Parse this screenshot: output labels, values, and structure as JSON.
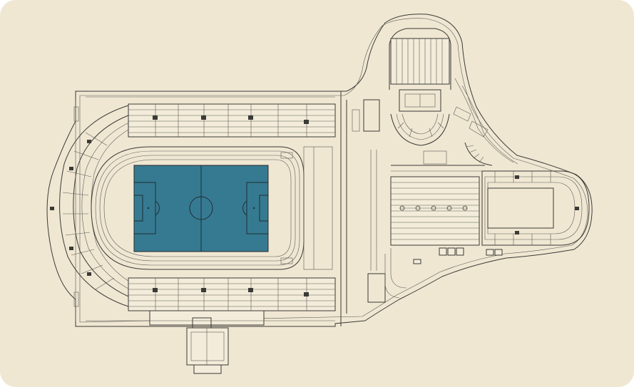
{
  "plan": {
    "background_color": "#f0e7d3",
    "line_color": "#3a3a36",
    "pitch_color": "#367a92"
  }
}
